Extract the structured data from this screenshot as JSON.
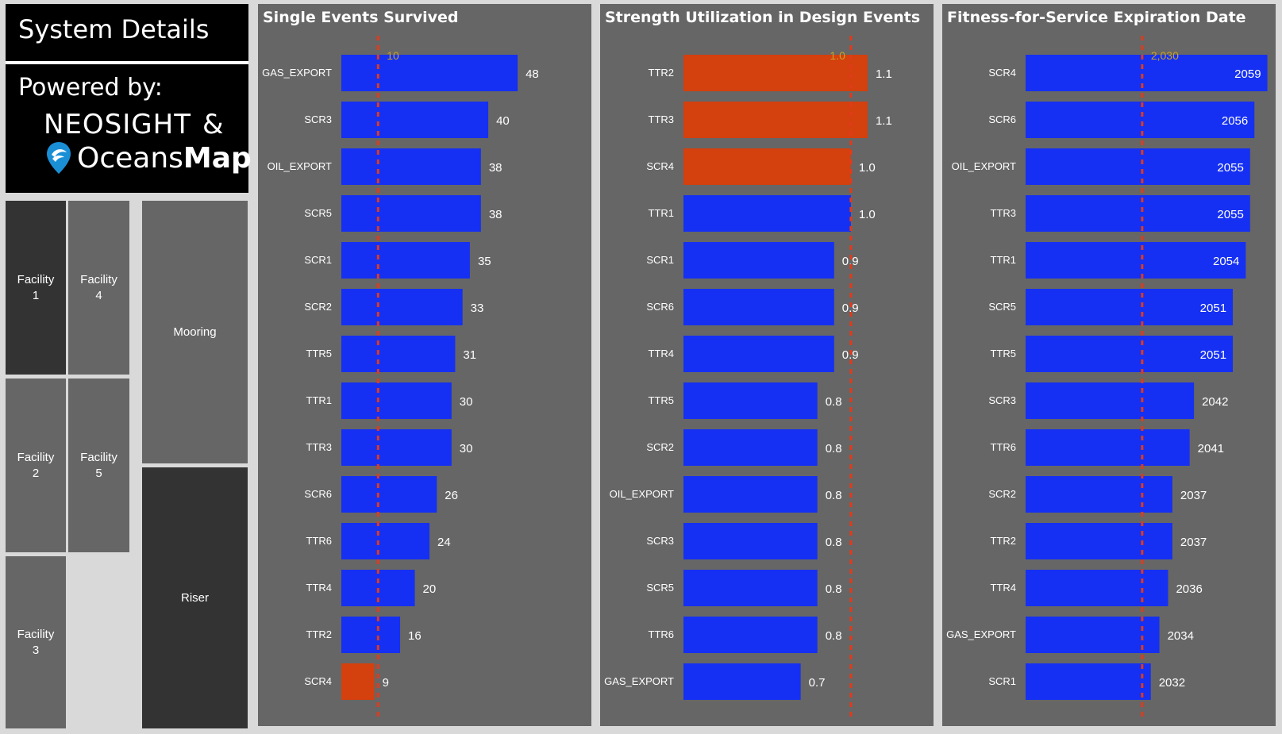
{
  "header": {
    "title": "System Details"
  },
  "powered": {
    "label": "Powered by:",
    "brand1": "NEOSIGHT",
    "amp": "&",
    "brand2_light": "Oceans",
    "brand2_bold": "Map"
  },
  "tiles": {
    "facility1": "Facility 1",
    "facility4": "Facility 4",
    "facility2": "Facility 2",
    "facility5": "Facility 5",
    "facility3": "Facility 3",
    "mooring": "Mooring",
    "riser": "Riser"
  },
  "colors": {
    "bar": "#1530f2",
    "highlight": "#d4400e",
    "refline": "#e23a1a",
    "reflabel": "#c9a227",
    "panel": "#666666"
  },
  "chart_data": [
    {
      "type": "bar",
      "orientation": "horizontal",
      "title": "Single Events Survived",
      "categories": [
        "GAS_EXPORT",
        "SCR3",
        "OIL_EXPORT",
        "SCR5",
        "SCR1",
        "SCR2",
        "TTR5",
        "TTR1",
        "TTR3",
        "SCR6",
        "TTR6",
        "TTR4",
        "TTR2",
        "SCR4"
      ],
      "values": [
        48,
        40,
        38,
        38,
        35,
        33,
        31,
        30,
        30,
        26,
        24,
        20,
        16,
        9
      ],
      "value_labels": [
        "48",
        "40",
        "38",
        "38",
        "35",
        "33",
        "31",
        "30",
        "30",
        "26",
        "24",
        "20",
        "16",
        "9"
      ],
      "highlight": [
        false,
        false,
        false,
        false,
        false,
        false,
        false,
        false,
        false,
        false,
        false,
        false,
        false,
        true
      ],
      "reference_line": 10,
      "reference_label": "10",
      "xlim": [
        0,
        67
      ],
      "label_position": "outside"
    },
    {
      "type": "bar",
      "orientation": "horizontal",
      "title": "Strength Utilization in Design Events",
      "categories": [
        "TTR2",
        "TTR3",
        "SCR4",
        "TTR1",
        "SCR1",
        "SCR6",
        "TTR4",
        "TTR5",
        "SCR2",
        "OIL_EXPORT",
        "SCR3",
        "SCR5",
        "TTR6",
        "GAS_EXPORT"
      ],
      "values": [
        1.1,
        1.1,
        1.0,
        1.0,
        0.9,
        0.9,
        0.9,
        0.8,
        0.8,
        0.8,
        0.8,
        0.8,
        0.8,
        0.7
      ],
      "value_labels": [
        "1.1",
        "1.1",
        "1.0",
        "1.0",
        "0.9",
        "0.9",
        "0.9",
        "0.8",
        "0.8",
        "0.8",
        "0.8",
        "0.8",
        "0.8",
        "0.7"
      ],
      "highlight": [
        true,
        true,
        true,
        false,
        false,
        false,
        false,
        false,
        false,
        false,
        false,
        false,
        false,
        false
      ],
      "reference_line": 1.0,
      "reference_label": "1.0",
      "xlim": [
        0,
        1.47
      ],
      "label_position": "outside"
    },
    {
      "type": "bar",
      "orientation": "horizontal",
      "title": "Fitness-for-Service Expiration Date",
      "categories": [
        "SCR4",
        "SCR6",
        "OIL_EXPORT",
        "TTR3",
        "TTR1",
        "SCR5",
        "TTR5",
        "SCR3",
        "TTR6",
        "SCR2",
        "TTR2",
        "TTR4",
        "GAS_EXPORT",
        "SCR1"
      ],
      "values": [
        2059,
        2056,
        2055,
        2055,
        2054,
        2051,
        2051,
        2042,
        2041,
        2037,
        2037,
        2036,
        2034,
        2032
      ],
      "value_labels": [
        "2059",
        "2056",
        "2055",
        "2055",
        "2054",
        "2051",
        "2051",
        "2042",
        "2041",
        "2037",
        "2037",
        "2036",
        "2034",
        "2032"
      ],
      "highlight": [
        false,
        false,
        false,
        false,
        false,
        false,
        false,
        false,
        false,
        false,
        false,
        false,
        false,
        false
      ],
      "reference_line": 2030,
      "reference_label": "2,030",
      "xlim": [
        2003,
        2060
      ],
      "label_position": "inside-when-fits"
    }
  ]
}
